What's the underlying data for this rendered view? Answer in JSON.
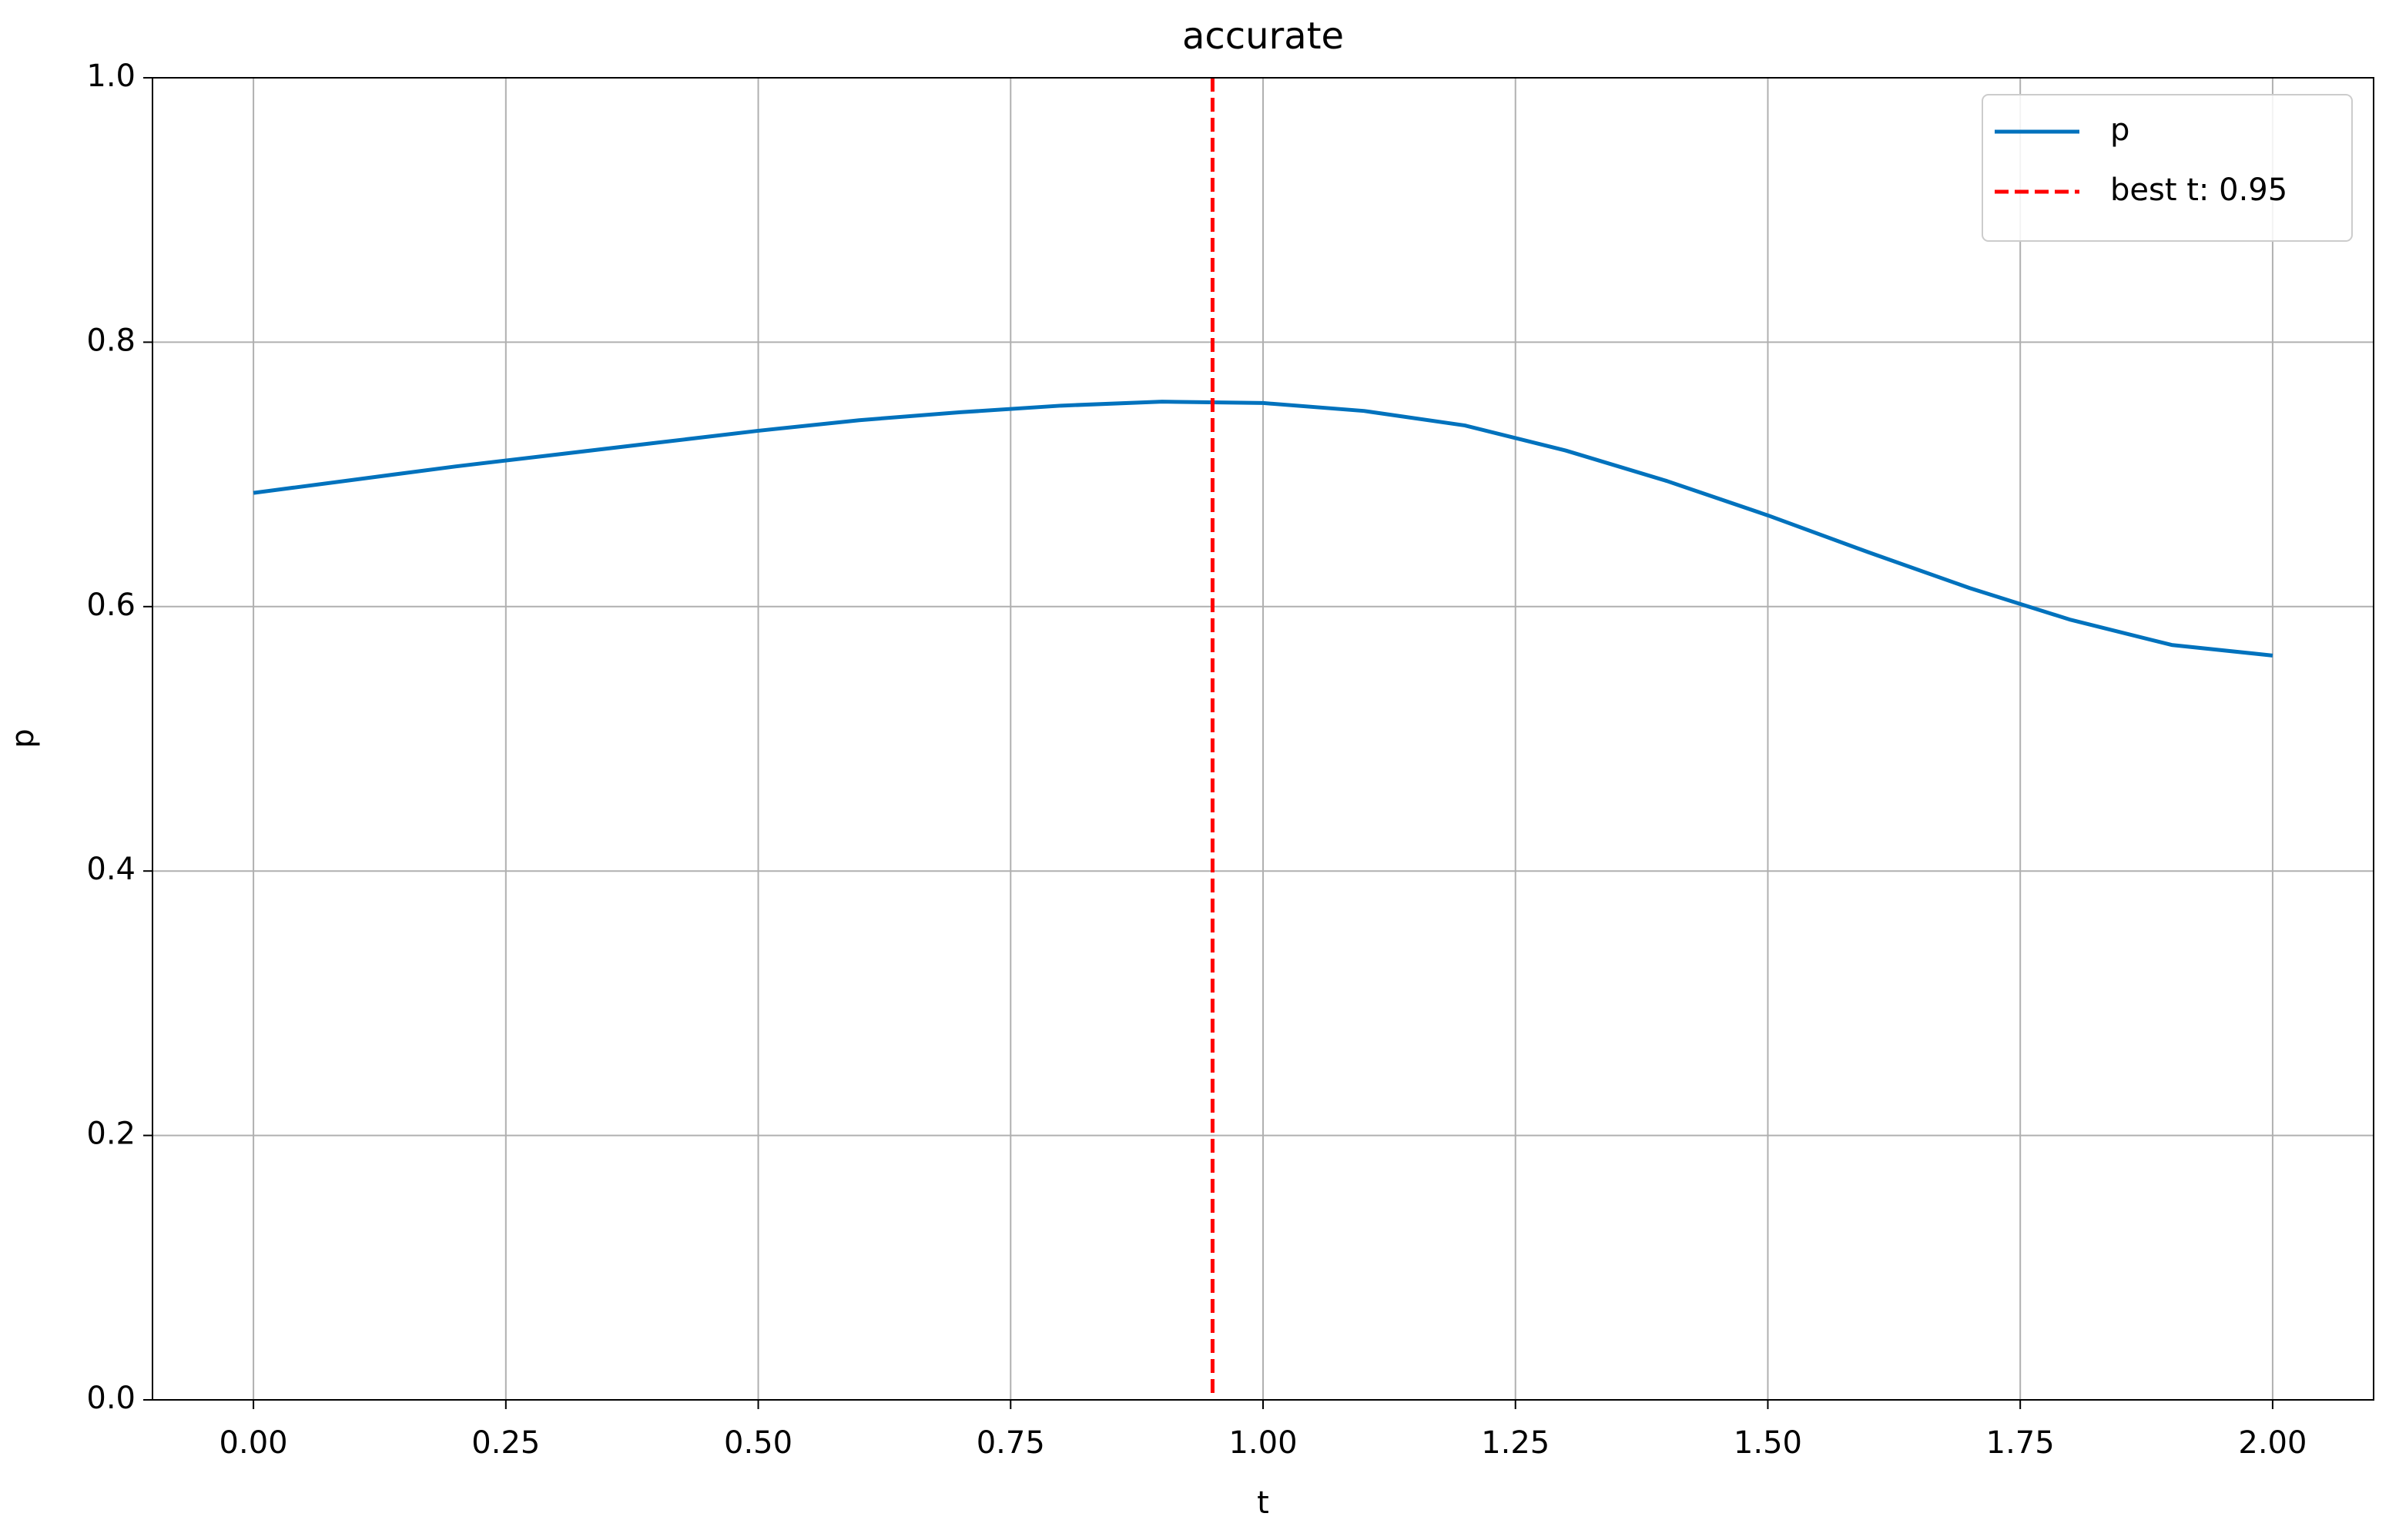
{
  "chart_data": {
    "type": "line",
    "title": "accurate",
    "x_label": "t",
    "y_label": "p",
    "x": [
      0,
      0.1,
      0.2,
      0.3,
      0.4,
      0.5,
      0.6,
      0.7,
      0.8,
      0.9,
      1.0,
      1.1,
      1.2,
      1.3,
      1.4,
      1.5,
      1.6,
      1.7,
      1.8,
      1.9,
      2.0
    ],
    "series": [
      {
        "name": "p",
        "color": "#0072bd",
        "values": [
          0.686,
          0.696,
          0.706,
          0.715,
          0.724,
          0.733,
          0.741,
          0.747,
          0.752,
          0.755,
          0.754,
          0.748,
          0.737,
          0.718,
          0.695,
          0.669,
          0.641,
          0.614,
          0.59,
          0.571,
          0.563
        ]
      }
    ],
    "vlines": [
      {
        "name": "best t: 0.95",
        "x": 0.95,
        "color": "#ff0000",
        "style": "dashed"
      }
    ],
    "xlim": [
      -0.1,
      2.1
    ],
    "ylim": [
      0,
      1
    ],
    "xticks": [
      {
        "value": 0,
        "label": "0.00"
      },
      {
        "value": 0.25,
        "label": "0.25"
      },
      {
        "value": 0.5,
        "label": "0.50"
      },
      {
        "value": 0.75,
        "label": "0.75"
      },
      {
        "value": 1,
        "label": "1.00"
      },
      {
        "value": 1.25,
        "label": "1.25"
      },
      {
        "value": 1.5,
        "label": "1.50"
      },
      {
        "value": 1.75,
        "label": "1.75"
      },
      {
        "value": 2,
        "label": "2.00"
      }
    ],
    "yticks": [
      {
        "value": 0,
        "label": "0.0"
      },
      0.2,
      0.4,
      0.6,
      0.8,
      {
        "value": 1,
        "label": "1.0"
      }
    ],
    "grid": true,
    "legend": "upper right"
  }
}
